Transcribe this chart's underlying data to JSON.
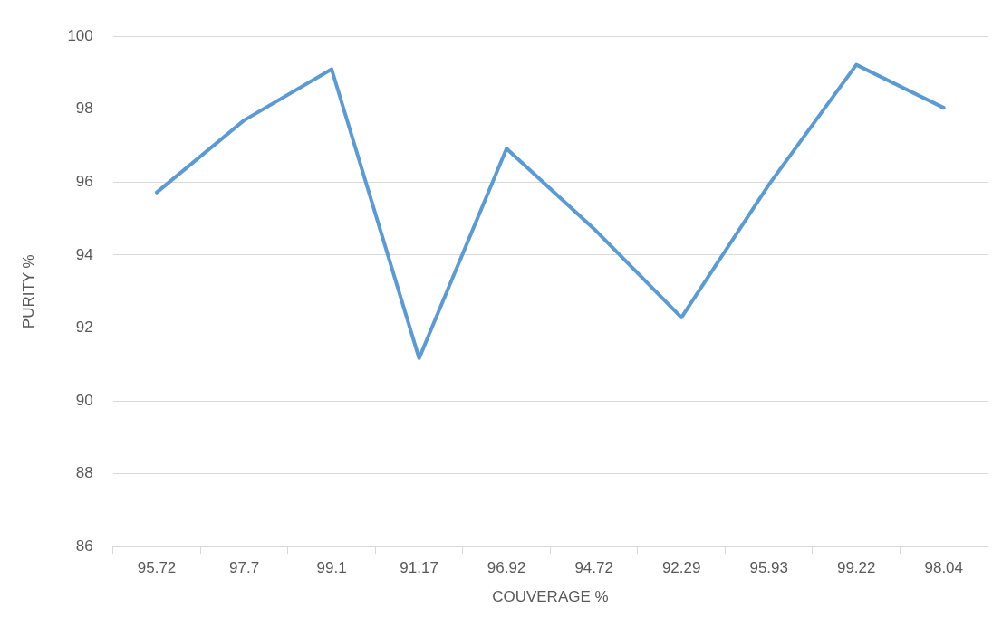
{
  "chart_data": {
    "type": "line",
    "xlabel": "COUVERAGE %",
    "ylabel": "PURITY %",
    "categories": [
      "95.72",
      "97.7",
      "99.1",
      "91.17",
      "96.92",
      "94.72",
      "92.29",
      "95.93",
      "99.22",
      "98.04"
    ],
    "series": [
      {
        "color": "#5b9bd5",
        "values": [
          95.72,
          97.7,
          99.1,
          91.17,
          96.92,
          94.72,
          92.29,
          95.93,
          99.22,
          98.04
        ]
      }
    ],
    "ylim": [
      86,
      100
    ],
    "yticks": [
      86,
      88,
      90,
      92,
      94,
      96,
      98,
      100
    ],
    "grid": "y",
    "legend": false,
    "marker": "none",
    "line_style": "solid"
  }
}
